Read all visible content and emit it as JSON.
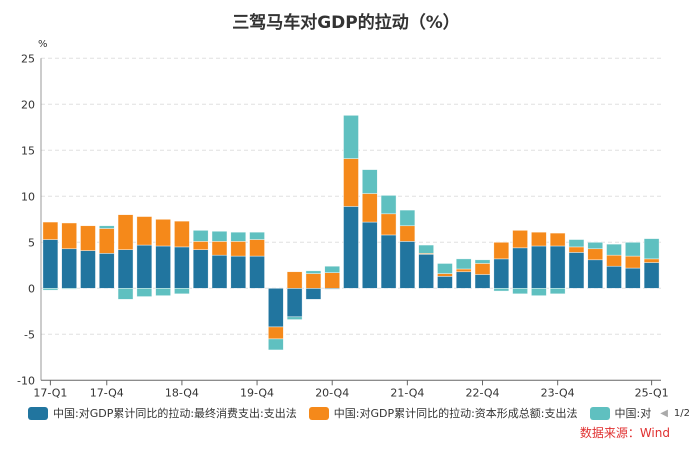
{
  "title": "三驾马车对GDP的拉动（%）",
  "source": "数据来源：Wind",
  "chart_data": {
    "type": "bar",
    "stacked": true,
    "title": "三驾马车对GDP的拉动（%）",
    "ylabel": "%",
    "ylim": [
      -10,
      25
    ],
    "yticks": [
      -10,
      -5,
      0,
      5,
      10,
      15,
      20,
      25
    ],
    "grid": "horizontal dashed",
    "legend_position": "bottom",
    "categories": [
      "17-Q1",
      "17-Q2",
      "17-Q3",
      "17-Q4",
      "18-Q1",
      "18-Q2",
      "18-Q3",
      "18-Q4",
      "19-Q1",
      "19-Q2",
      "19-Q3",
      "19-Q4",
      "20-Q1",
      "20-Q2",
      "20-Q3",
      "20-Q4",
      "21-Q1",
      "21-Q2",
      "21-Q3",
      "21-Q4",
      "22-Q1",
      "22-Q2",
      "22-Q3",
      "22-Q4",
      "23-Q1",
      "23-Q2",
      "23-Q3",
      "23-Q4",
      "24-Q1",
      "24-Q2",
      "24-Q3",
      "24-Q4",
      "25-Q1"
    ],
    "xtick_labels": [
      "17-Q1",
      "17-Q4",
      "18-Q4",
      "19-Q4",
      "20-Q4",
      "21-Q4",
      "22-Q4",
      "23-Q4",
      "25-Q1"
    ],
    "series": [
      {
        "name": "中国:对GDP累计同比的拉动:最终消费支出:支出法",
        "color": "#21759f",
        "values": [
          5.3,
          4.3,
          4.1,
          3.8,
          4.2,
          4.7,
          4.6,
          4.5,
          4.2,
          3.6,
          3.5,
          3.5,
          -4.2,
          -3.1,
          -1.2,
          -0.1,
          8.9,
          7.2,
          5.8,
          5.1,
          3.7,
          1.3,
          1.8,
          1.5,
          3.2,
          4.4,
          4.6,
          4.6,
          3.9,
          3.1,
          2.4,
          2.2,
          2.8
        ]
      },
      {
        "name": "中国:对GDP累计同比的拉动:资本形成总额:支出法",
        "color": "#f5891a",
        "values": [
          1.9,
          2.8,
          2.7,
          2.7,
          3.8,
          3.1,
          2.9,
          2.8,
          0.9,
          1.5,
          1.6,
          1.8,
          -1.3,
          1.8,
          1.6,
          1.7,
          5.2,
          3.1,
          2.3,
          1.7,
          0.1,
          0.3,
          0.3,
          1.2,
          1.8,
          1.9,
          1.5,
          1.4,
          0.6,
          1.2,
          1.2,
          1.3,
          0.4
        ]
      },
      {
        "name": "中国:对",
        "color": "#5fc0c0",
        "values": [
          -0.2,
          -0.1,
          0,
          0.3,
          -1.2,
          -0.9,
          -0.8,
          -0.6,
          1.2,
          1.1,
          1.0,
          0.8,
          -1.2,
          -0.3,
          0.3,
          0.7,
          4.7,
          2.6,
          2.0,
          1.7,
          0.9,
          1.1,
          1.1,
          0.4,
          -0.3,
          -0.6,
          -0.8,
          -0.6,
          0.8,
          0.7,
          1.2,
          1.5,
          2.2
        ]
      }
    ]
  },
  "legend": {
    "items": [
      "中国:对GDP累计同比的拉动:最终消费支出:支出法",
      "中国:对GDP累计同比的拉动:资本形成总额:支出法",
      "中国:对"
    ],
    "page": "1/2"
  }
}
